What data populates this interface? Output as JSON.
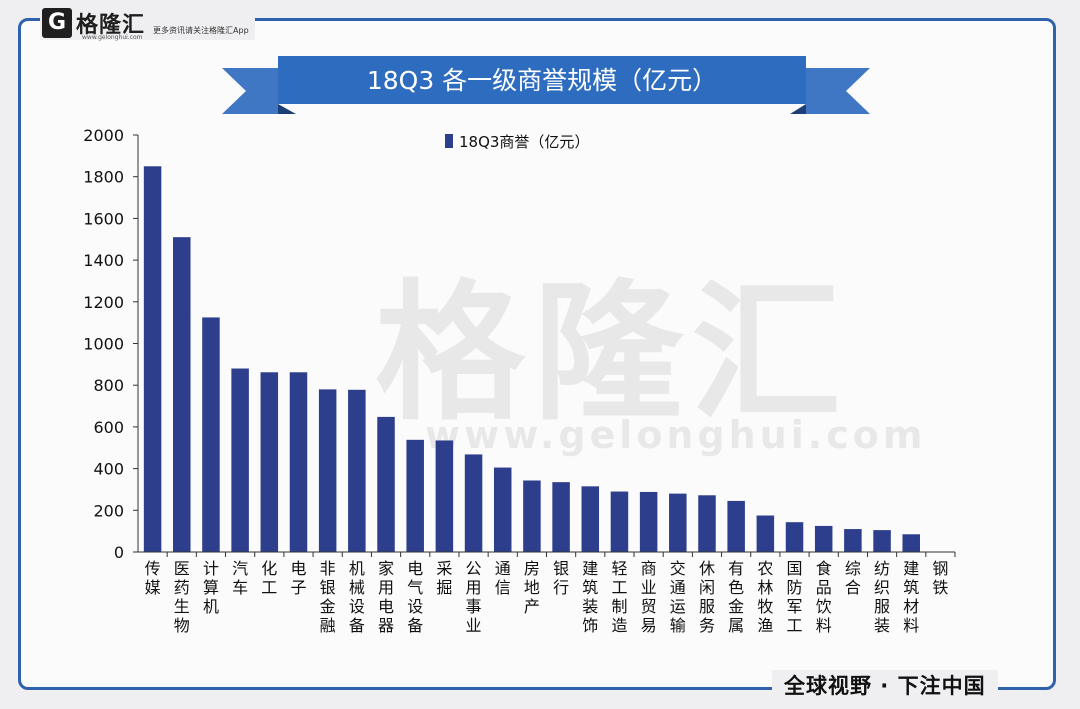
{
  "brand": {
    "logo_letter": "G",
    "logo_name": "格隆汇",
    "logo_url": "www.gelonghui.com",
    "tagline": "更多资讯请关注格隆汇App",
    "watermark_cn": "格隆汇",
    "watermark_url": "www.gelonghui.com",
    "slogan": "全球视野 · 下注中国"
  },
  "colors": {
    "bar": "#2d3f8c",
    "accent": "#2e62ad"
  },
  "chart_data": {
    "type": "bar",
    "title": "18Q3 各一级商誉规模（亿元）",
    "legend": "top-center",
    "categories": [
      "传媒",
      "医药生物",
      "计算机",
      "汽车",
      "化工",
      "电子",
      "非银金融",
      "机械设备",
      "家用电器",
      "电气设备",
      "采掘",
      "公用事业",
      "通信",
      "房地产",
      "银行",
      "建筑装饰",
      "轻工制造",
      "商业贸易",
      "交通运输",
      "休闲服务",
      "有色金属",
      "农林牧渔",
      "国防军工",
      "食品饮料",
      "综合",
      "纺织服装",
      "建筑材料",
      "钢铁"
    ],
    "series": [
      {
        "name": "18Q3商誉（亿元）",
        "values": [
          1850,
          1510,
          1125,
          880,
          862,
          862,
          780,
          778,
          648,
          538,
          535,
          468,
          405,
          343,
          335,
          315,
          290,
          288,
          280,
          272,
          245,
          175,
          143,
          125,
          110,
          105,
          85,
          0
        ]
      }
    ],
    "xlabel": "",
    "ylabel": "",
    "ylim": [
      0,
      2000
    ],
    "yticks": [
      "0",
      "200",
      "400",
      "600",
      "800",
      "1000",
      "1200",
      "1400",
      "1600",
      "1800",
      "2000"
    ],
    "grid": false
  }
}
